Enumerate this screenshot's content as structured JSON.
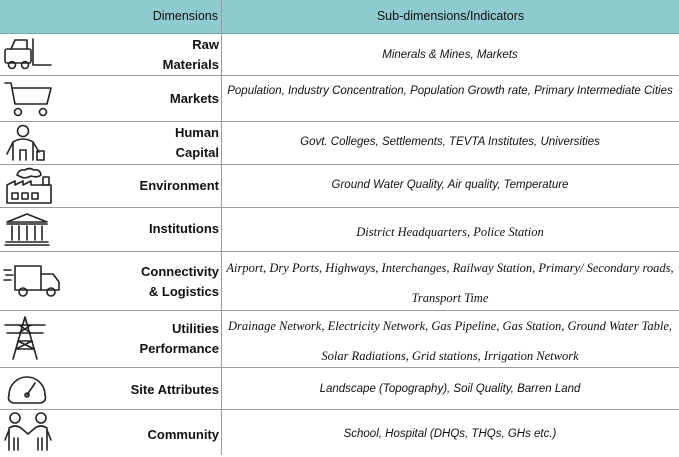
{
  "header": {
    "dimensions_label": "Dimensions",
    "indicators_label": "Sub-dimensions/Indicators",
    "background_color": "#8fcad0"
  },
  "rows": [
    {
      "icon": "forklift-icon",
      "dimension": "Raw\nMaterials",
      "indicators": "Minerals & Mines, Markets"
    },
    {
      "icon": "shopping-cart-icon",
      "dimension": "Markets",
      "indicators": "Population, Industry Concentration, Population Growth rate, Primary Intermediate Cities"
    },
    {
      "icon": "person-icon",
      "dimension": "Human\nCapital",
      "indicators": "Govt. Colleges, Settlements, TEVTA Institutes, Universities"
    },
    {
      "icon": "factory-icon",
      "dimension": "Environment",
      "indicators": "Ground Water Quality, Air quality, Temperature"
    },
    {
      "icon": "institution-building-icon",
      "dimension": "Institutions",
      "indicators": "District Headquarters, Police Station"
    },
    {
      "icon": "delivery-truck-icon",
      "dimension": "Connectivity\n& Logistics",
      "indicators": "Airport, Dry Ports, Highways, Interchanges, Railway Station, Primary/ Secondary roads, Transport Time"
    },
    {
      "icon": "power-tower-icon",
      "dimension": "Utilities\nPerformance",
      "indicators": "Drainage Network, Electricity Network, Gas Pipeline, Gas Station, Ground Water Table, Solar Radiations, Grid stations, Irrigation Network"
    },
    {
      "icon": "gauge-icon",
      "dimension": "Site Attributes",
      "indicators": "Landscape (Topography), Soil Quality, Barren Land"
    },
    {
      "icon": "handshake-icon",
      "dimension": "Community",
      "indicators": "School, Hospital (DHQs, THQs, GHs etc.)"
    }
  ]
}
